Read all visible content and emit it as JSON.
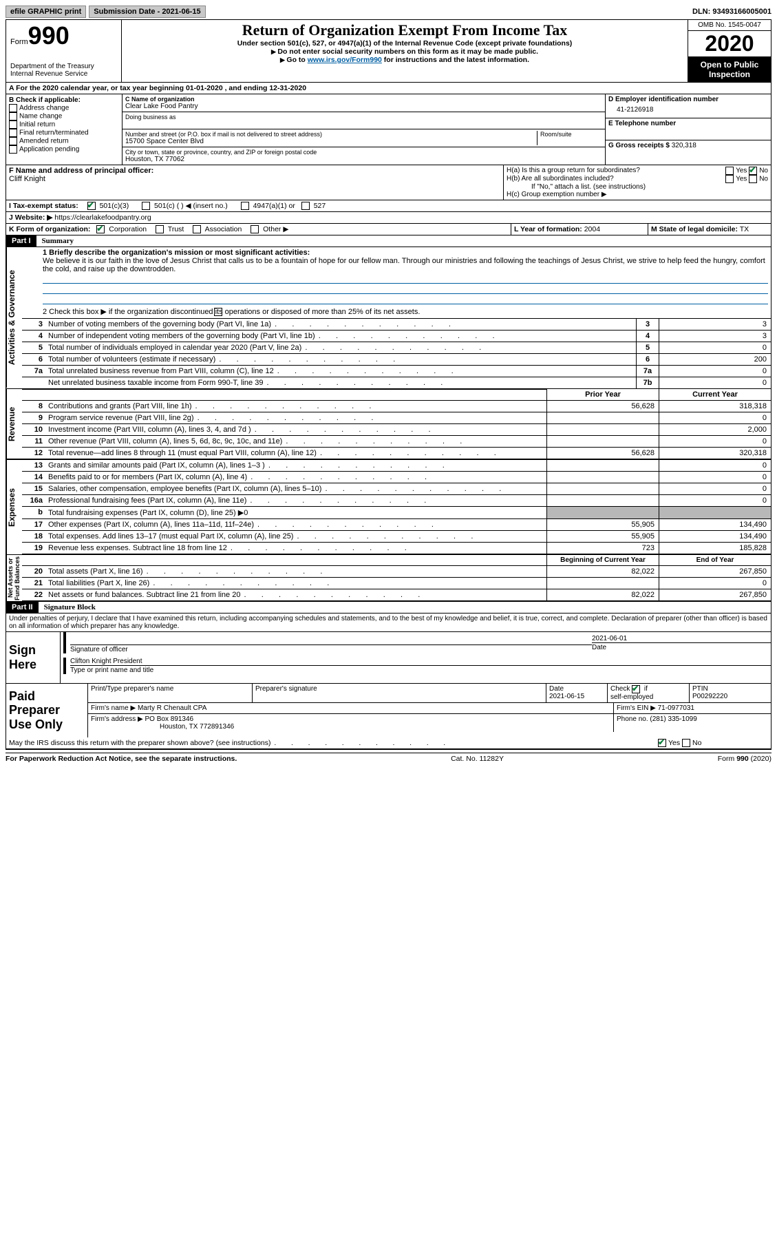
{
  "topbar": {
    "efile": "efile GRAPHIC print",
    "submission": "Submission Date - 2021-06-15",
    "dln": "DLN: 93493166005001"
  },
  "header": {
    "form_prefix": "Form",
    "form_num": "990",
    "dept": "Department of the Treasury\nInternal Revenue Service",
    "title": "Return of Organization Exempt From Income Tax",
    "subtitle": "Under section 501(c), 527, or 4947(a)(1) of the Internal Revenue Code (except private foundations)",
    "note1": "Do not enter social security numbers on this form as it may be made public.",
    "note2_pre": "Go to ",
    "note2_link": "www.irs.gov/Form990",
    "note2_post": " for instructions and the latest information.",
    "omb": "OMB No. 1545-0047",
    "year": "2020",
    "open": "Open to Public Inspection"
  },
  "lineA": "A For the 2020 calendar year, or tax year beginning 01-01-2020    , and ending 12-31-2020",
  "B": {
    "label": "B Check if applicable:",
    "opts": [
      "Address change",
      "Name change",
      "Initial return",
      "Final return/terminated",
      "Amended return",
      "Application pending"
    ]
  },
  "C": {
    "name_label": "C Name of organization",
    "name": "Clear Lake Food Pantry",
    "dba_label": "Doing business as",
    "addr_label": "Number and street (or P.O. box if mail is not delivered to street address)",
    "room_label": "Room/suite",
    "addr": "15700 Space Center Blvd",
    "city_label": "City or town, state or province, country, and ZIP or foreign postal code",
    "city": "Houston, TX   77062"
  },
  "D": {
    "label": "D Employer identification number",
    "value": "41-2126918",
    "phone_label": "E Telephone number",
    "gross_label": "G Gross receipts $",
    "gross": "320,318"
  },
  "F": {
    "label": "F  Name and address of principal officer:",
    "name": "Cliff Knight"
  },
  "H": {
    "a": "H(a)  Is this a group return for subordinates?",
    "b": "H(b)  Are all subordinates included?",
    "bnote": "If \"No,\" attach a list. (see instructions)",
    "c": "H(c)  Group exemption number ▶"
  },
  "I": {
    "label": "I    Tax-exempt status:",
    "opts": [
      "501(c)(3)",
      "501(c) (   ) ◀ (insert no.)",
      "4947(a)(1) or",
      "527"
    ]
  },
  "J": {
    "label": "J   Website: ▶",
    "url": "https://clearlakefoodpantry.org"
  },
  "K": {
    "label": "K Form of organization:",
    "opts": [
      "Corporation",
      "Trust",
      "Association",
      "Other ▶"
    ]
  },
  "L": {
    "label": "L Year of formation:",
    "val": "2004"
  },
  "M": {
    "label": "M State of legal domicile:",
    "val": "TX"
  },
  "part1": {
    "hdr": "Part I",
    "title": "Summary",
    "q1": "1  Briefly describe the organization's mission or most significant activities:",
    "mission": "We believe it is our faith in the love of Jesus Christ that calls us to be a fountain of hope for our fellow man. Through our ministries and following the teachings of Jesus Christ, we strive to help feed the hungry, comfort the cold, and raise up the downtrodden.",
    "q2": "2   Check this box ▶         if the organization discontinued its operations or disposed of more than 25% of its net assets.",
    "rows_gov": [
      {
        "n": "3",
        "d": "Number of voting members of the governing body (Part VI, line 1a)",
        "box": "3",
        "v": "3"
      },
      {
        "n": "4",
        "d": "Number of independent voting members of the governing body (Part VI, line 1b)",
        "box": "4",
        "v": "3"
      },
      {
        "n": "5",
        "d": "Total number of individuals employed in calendar year 2020 (Part V, line 2a)",
        "box": "5",
        "v": "0"
      },
      {
        "n": "6",
        "d": "Total number of volunteers (estimate if necessary)",
        "box": "6",
        "v": "200"
      },
      {
        "n": "7a",
        "d": "Total unrelated business revenue from Part VIII, column (C), line 12",
        "box": "7a",
        "v": "0"
      },
      {
        "n": "",
        "d": "Net unrelated business taxable income from Form 990-T, line 39",
        "box": "7b",
        "v": "0"
      }
    ],
    "priorhdr": "Prior Year",
    "currhdr": "Current Year",
    "rev_rows": [
      {
        "n": "8",
        "d": "Contributions and grants (Part VIII, line 1h)",
        "p": "56,628",
        "c": "318,318"
      },
      {
        "n": "9",
        "d": "Program service revenue (Part VIII, line 2g)",
        "p": "",
        "c": "0"
      },
      {
        "n": "10",
        "d": "Investment income (Part VIII, column (A), lines 3, 4, and 7d )",
        "p": "",
        "c": "2,000"
      },
      {
        "n": "11",
        "d": "Other revenue (Part VIII, column (A), lines 5, 6d, 8c, 9c, 10c, and 11e)",
        "p": "",
        "c": "0"
      },
      {
        "n": "12",
        "d": "Total revenue—add lines 8 through 11 (must equal Part VIII, column (A), line 12)",
        "p": "56,628",
        "c": "320,318"
      }
    ],
    "exp_rows": [
      {
        "n": "13",
        "d": "Grants and similar amounts paid (Part IX, column (A), lines 1–3 )",
        "p": "",
        "c": "0"
      },
      {
        "n": "14",
        "d": "Benefits paid to or for members (Part IX, column (A), line 4)",
        "p": "",
        "c": "0"
      },
      {
        "n": "15",
        "d": "Salaries, other compensation, employee benefits (Part IX, column (A), lines 5–10)",
        "p": "",
        "c": "0"
      },
      {
        "n": "16a",
        "d": "Professional fundraising fees (Part IX, column (A), line 11e)",
        "p": "",
        "c": "0"
      },
      {
        "n": "b",
        "d": "Total fundraising expenses (Part IX, column (D), line 25) ▶0",
        "grey": true
      },
      {
        "n": "17",
        "d": "Other expenses (Part IX, column (A), lines 11a–11d, 11f–24e)",
        "p": "55,905",
        "c": "134,490"
      },
      {
        "n": "18",
        "d": "Total expenses. Add lines 13–17 (must equal Part IX, column (A), line 25)",
        "p": "55,905",
        "c": "134,490"
      },
      {
        "n": "19",
        "d": "Revenue less expenses. Subtract line 18 from line 12",
        "p": "723",
        "c": "185,828"
      }
    ],
    "beghdr": "Beginning of Current Year",
    "endhdr": "End of Year",
    "net_rows": [
      {
        "n": "20",
        "d": "Total assets (Part X, line 16)",
        "p": "82,022",
        "c": "267,850"
      },
      {
        "n": "21",
        "d": "Total liabilities (Part X, line 26)",
        "p": "",
        "c": "0"
      },
      {
        "n": "22",
        "d": "Net assets or fund balances. Subtract line 21 from line 20",
        "p": "82,022",
        "c": "267,850"
      }
    ]
  },
  "part2": {
    "hdr": "Part II",
    "title": "Signature Block",
    "decl": "Under penalties of perjury, I declare that I have examined this return, including accompanying schedules and statements, and to the best of my knowledge and belief, it is true, correct, and complete. Declaration of preparer (other than officer) is based on all information of which preparer has any knowledge."
  },
  "sign": {
    "label": "Sign Here",
    "date": "2021-06-01",
    "sig_label": "Signature of officer",
    "date_label": "Date",
    "name": "Clifton Knight  President",
    "name_label": "Type or print name and title"
  },
  "paid": {
    "label": "Paid Preparer Use Only",
    "h1": "Print/Type preparer's name",
    "h2": "Preparer's signature",
    "h3": "Date",
    "date": "2021-06-15",
    "check_label": "Check          if self-employed",
    "ptin_label": "PTIN",
    "ptin": "P00292220",
    "firm_name_l": "Firm's name     ▶",
    "firm_name": "Marty R Chenault CPA",
    "firm_ein_l": "Firm's EIN ▶",
    "firm_ein": "71-0977031",
    "firm_addr_l": "Firm's address ▶",
    "firm_addr": "PO Box 891346",
    "firm_city": "Houston, TX   772891346",
    "phone_l": "Phone no.",
    "phone": "(281) 335-1099"
  },
  "may": "May the IRS discuss this return with the preparer shown above? (see instructions)",
  "footer": {
    "left": "For Paperwork Reduction Act Notice, see the separate instructions.",
    "mid": "Cat. No. 11282Y",
    "right": "Form 990 (2020)"
  }
}
